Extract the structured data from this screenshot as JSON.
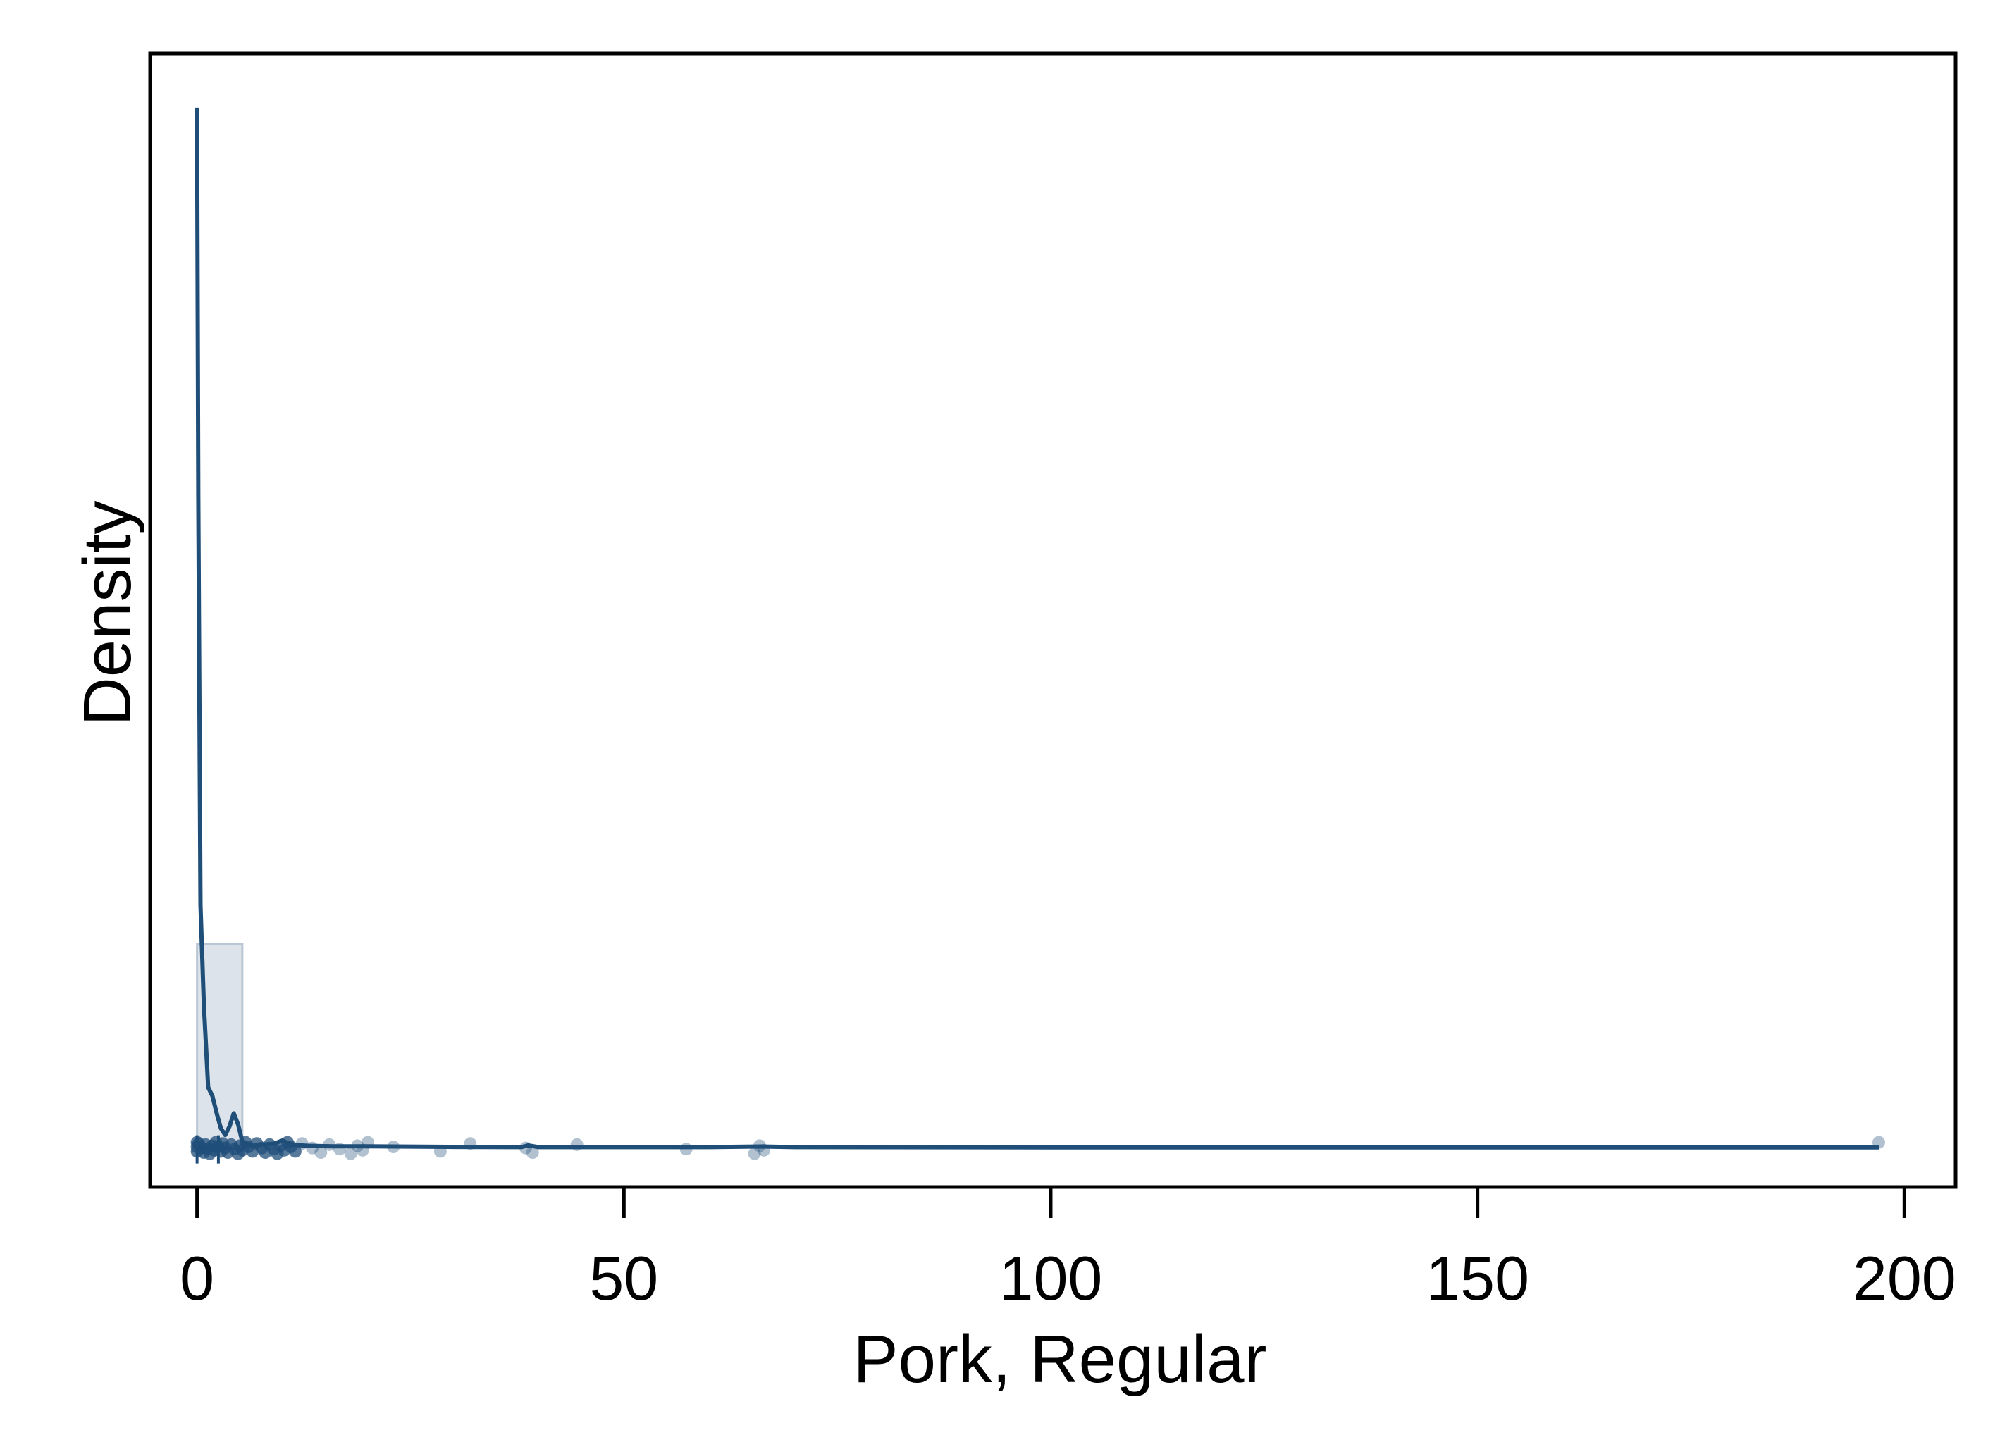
{
  "chart_data": {
    "type": "histogram-kde",
    "title": "",
    "xlabel": "Pork, Regular",
    "ylabel": "Density",
    "xlim": [
      -5.5,
      206
    ],
    "ylim": [
      -0.018,
      0.505
    ],
    "x_ticks": [
      0,
      50,
      100,
      150,
      200
    ],
    "x_tick_labels": [
      "0",
      "50",
      "100",
      "150",
      "200"
    ],
    "y_ticks": [],
    "grid": false,
    "legend": "none",
    "histogram": {
      "bins": [
        {
          "x0": 0.0,
          "x1": 5.3,
          "density": 0.094
        }
      ]
    },
    "kde": {
      "x": [
        0.0,
        0.15,
        0.4,
        0.8,
        1.3,
        1.8,
        2.3,
        2.8,
        3.3,
        3.8,
        4.3,
        4.8,
        5.3,
        5.8,
        6.5,
        7.5,
        9.0,
        10.0,
        11.0,
        13.0,
        16.0,
        20.0,
        30.0,
        38.0,
        38.8,
        40.0,
        50.0,
        60.0,
        66.0,
        70.0,
        100.0,
        150.0,
        190.0,
        197.0
      ],
      "y": [
        0.48,
        0.3,
        0.112,
        0.066,
        0.028,
        0.024,
        0.016,
        0.009,
        0.006,
        0.01,
        0.016,
        0.011,
        0.003,
        0.002,
        0.001,
        0.0015,
        0.002,
        0.0035,
        0.0015,
        0.001,
        0.0008,
        0.0008,
        0.0005,
        0.0004,
        0.0012,
        0.0004,
        0.0004,
        0.0004,
        0.0007,
        0.0004,
        0.0003,
        0.0003,
        0.0003,
        0.0003
      ]
    },
    "observations": [
      0,
      0,
      0,
      0.2,
      0.5,
      0.8,
      1.0,
      1.2,
      1.5,
      1.8,
      2.0,
      2.2,
      2.5,
      2.8,
      3.0,
      3.3,
      3.6,
      4.0,
      4.4,
      4.8,
      5.0,
      5.3,
      5.7,
      6.0,
      6.5,
      7.0,
      7.6,
      8.0,
      8.5,
      9.0,
      9.4,
      9.8,
      10.2,
      10.6,
      11.0,
      11.5,
      12.3,
      13.5,
      14.5,
      15.5,
      16.7,
      18.0,
      18.8,
      19.4,
      20.0,
      23.0,
      28.5,
      32.0,
      38.5,
      39.3,
      44.5,
      57.3,
      65.3,
      65.9,
      66.4,
      197.0
    ],
    "colors": {
      "line": "#1f4e79",
      "bar_fill": "#dde3ea",
      "bar_edge": "#b9c6d4",
      "points": "#1f4e79",
      "frame": "#000000"
    }
  }
}
